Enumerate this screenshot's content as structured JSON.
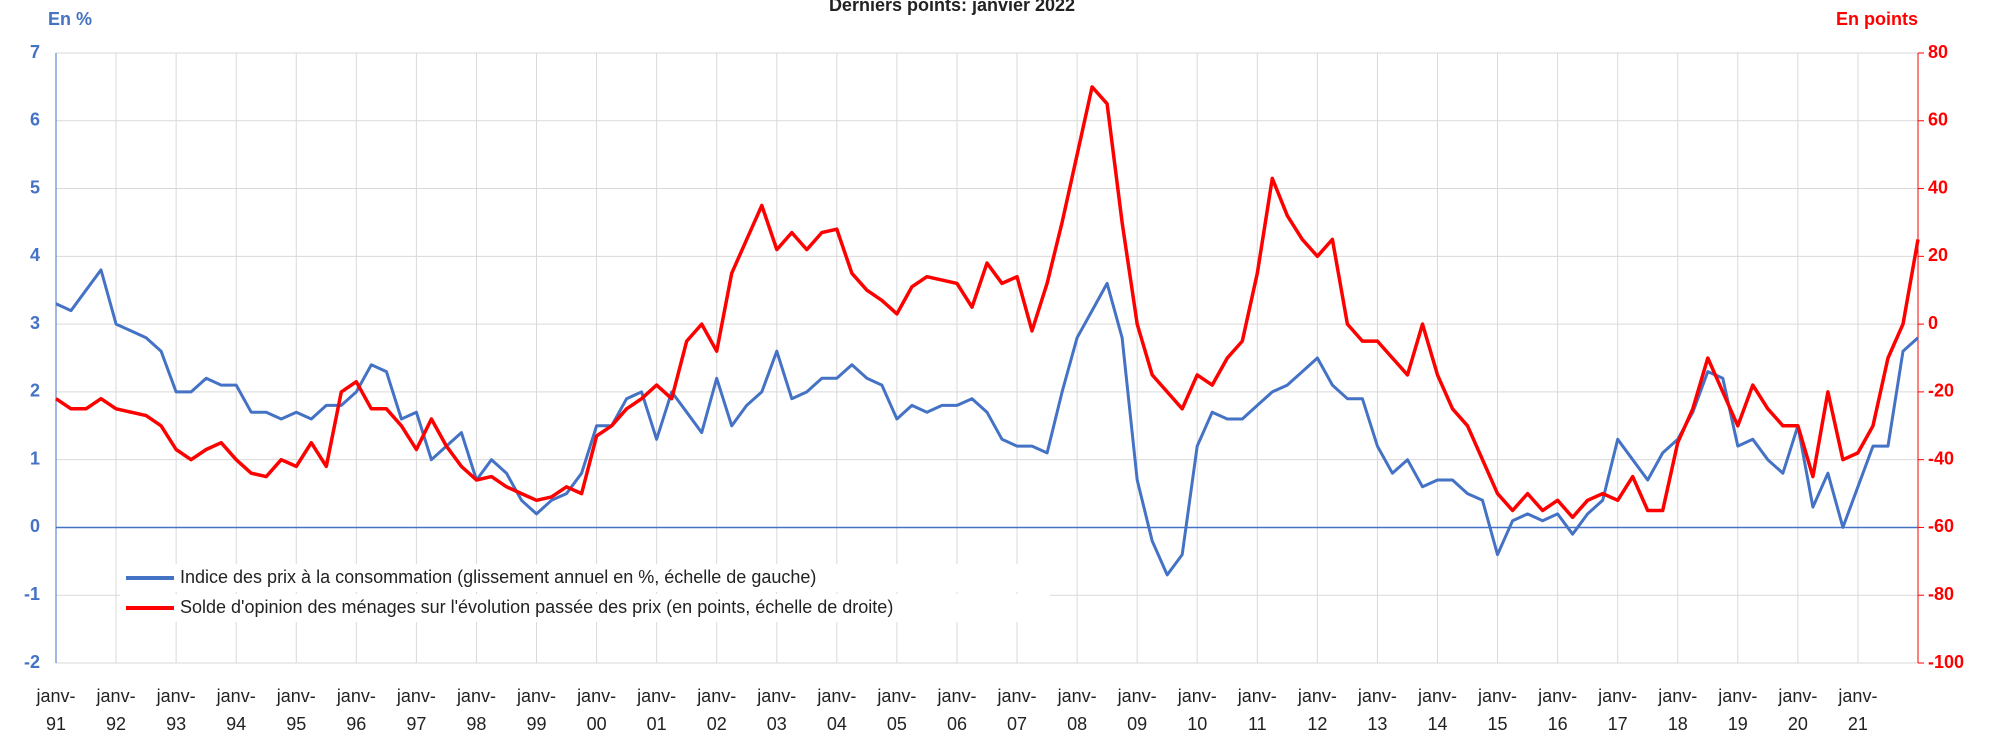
{
  "chart_data": {
    "type": "line",
    "title": "Derniers points: janvier 2022",
    "y_label": "En %",
    "y2_label": "En points",
    "categories": [
      "janv-91",
      null,
      null,
      null,
      "janv-92",
      null,
      null,
      null,
      "janv-93",
      null,
      null,
      null,
      "janv-94",
      null,
      null,
      null,
      "janv-95",
      null,
      null,
      null,
      "janv-96",
      null,
      null,
      null,
      "janv-97",
      null,
      null,
      null,
      "janv-98",
      null,
      null,
      null,
      "janv-99",
      null,
      null,
      null,
      "janv-00",
      null,
      null,
      null,
      "janv-01",
      null,
      null,
      null,
      "janv-02",
      null,
      null,
      null,
      "janv-03",
      null,
      null,
      null,
      "janv-04",
      null,
      null,
      null,
      "janv-05",
      null,
      null,
      null,
      "janv-06",
      null,
      null,
      null,
      "janv-07",
      null,
      null,
      null,
      "janv-08",
      null,
      null,
      null,
      "janv-09",
      null,
      null,
      null,
      "janv-10",
      null,
      null,
      null,
      "janv-11",
      null,
      null,
      null,
      "janv-12",
      null,
      null,
      null,
      "janv-13",
      null,
      null,
      null,
      "janv-14",
      null,
      null,
      null,
      "janv-15",
      null,
      null,
      null,
      "janv-16",
      null,
      null,
      null,
      "janv-17",
      null,
      null,
      null,
      "janv-18",
      null,
      null,
      null,
      "janv-19",
      null,
      null,
      null,
      "janv-20",
      null,
      null,
      null,
      "janv-21",
      null,
      null,
      null,
      null
    ],
    "series": [
      {
        "name": "Indice des prix à la consommation (glissement annuel en %, échelle de gauche)",
        "color": "#4472c4",
        "axis": "y",
        "values": [
          3.3,
          3.2,
          3.5,
          3.8,
          3.0,
          2.9,
          2.8,
          2.6,
          2.0,
          2.0,
          2.2,
          2.1,
          2.1,
          1.7,
          1.7,
          1.6,
          1.7,
          1.6,
          1.8,
          1.8,
          2.0,
          2.4,
          2.3,
          1.6,
          1.7,
          1.0,
          1.2,
          1.4,
          0.7,
          1.0,
          0.8,
          0.4,
          0.2,
          0.4,
          0.5,
          0.8,
          1.5,
          1.5,
          1.9,
          2.0,
          1.3,
          2.0,
          1.7,
          1.4,
          2.2,
          1.5,
          1.8,
          2.0,
          2.6,
          1.9,
          2.0,
          2.2,
          2.2,
          2.4,
          2.2,
          2.1,
          1.6,
          1.8,
          1.7,
          1.8,
          1.8,
          1.9,
          1.7,
          1.3,
          1.2,
          1.2,
          1.1,
          2.0,
          2.8,
          3.2,
          3.6,
          2.8,
          0.7,
          -0.2,
          -0.7,
          -0.4,
          1.2,
          1.7,
          1.6,
          1.6,
          1.8,
          2.0,
          2.1,
          2.3,
          2.5,
          2.1,
          1.9,
          1.9,
          1.2,
          0.8,
          1.0,
          0.6,
          0.7,
          0.7,
          0.5,
          0.4,
          -0.4,
          0.1,
          0.2,
          0.1,
          0.2,
          -0.1,
          0.2,
          0.4,
          1.3,
          1.0,
          0.7,
          1.1,
          1.3,
          1.7,
          2.3,
          2.2,
          1.2,
          1.3,
          1.0,
          0.8,
          1.5,
          0.3,
          0.8,
          0.0,
          0.6,
          1.2,
          1.2,
          2.6,
          2.8
        ]
      },
      {
        "name": "Solde d'opinion des ménages sur l'évolution passée des prix (en points, échelle de droite)",
        "color": "#ff0000",
        "axis": "y2",
        "values": [
          -22,
          -25,
          -25,
          -22,
          -25,
          -26,
          -27,
          -30,
          -37,
          -40,
          -37,
          -35,
          -40,
          -44,
          -45,
          -40,
          -42,
          -35,
          -42,
          -20,
          -17,
          -25,
          -25,
          -30,
          -37,
          -28,
          -36,
          -42,
          -46,
          -45,
          -48,
          -50,
          -52,
          -51,
          -48,
          -50,
          -33,
          -30,
          -25,
          -22,
          -18,
          -22,
          -5,
          0,
          -8,
          15,
          25,
          35,
          22,
          27,
          22,
          27,
          28,
          15,
          10,
          7,
          3,
          11,
          14,
          13,
          12,
          5,
          18,
          12,
          14,
          -2,
          12,
          30,
          50,
          70,
          65,
          30,
          0,
          -15,
          -20,
          -25,
          -15,
          -18,
          -10,
          -5,
          15,
          43,
          32,
          25,
          20,
          25,
          0,
          -5,
          -5,
          -10,
          -15,
          0,
          -15,
          -25,
          -30,
          -40,
          -50,
          -55,
          -50,
          -55,
          -52,
          -57,
          -52,
          -50,
          -52,
          -45,
          -55,
          -55,
          -35,
          -25,
          -10,
          -20,
          -30,
          -18,
          -25,
          -30,
          -30,
          -45,
          -20,
          -40,
          -38,
          -30,
          -10,
          0,
          25
        ]
      }
    ],
    "ylim": [
      -2,
      7
    ],
    "yticks": [
      -2,
      -1,
      0,
      1,
      2,
      3,
      4,
      5,
      6,
      7
    ],
    "y2lim": [
      -100,
      80
    ],
    "y2ticks": [
      -100,
      -80,
      -60,
      -40,
      -20,
      0,
      20,
      40,
      60,
      80
    ],
    "grid": true,
    "legend": "lower left"
  }
}
